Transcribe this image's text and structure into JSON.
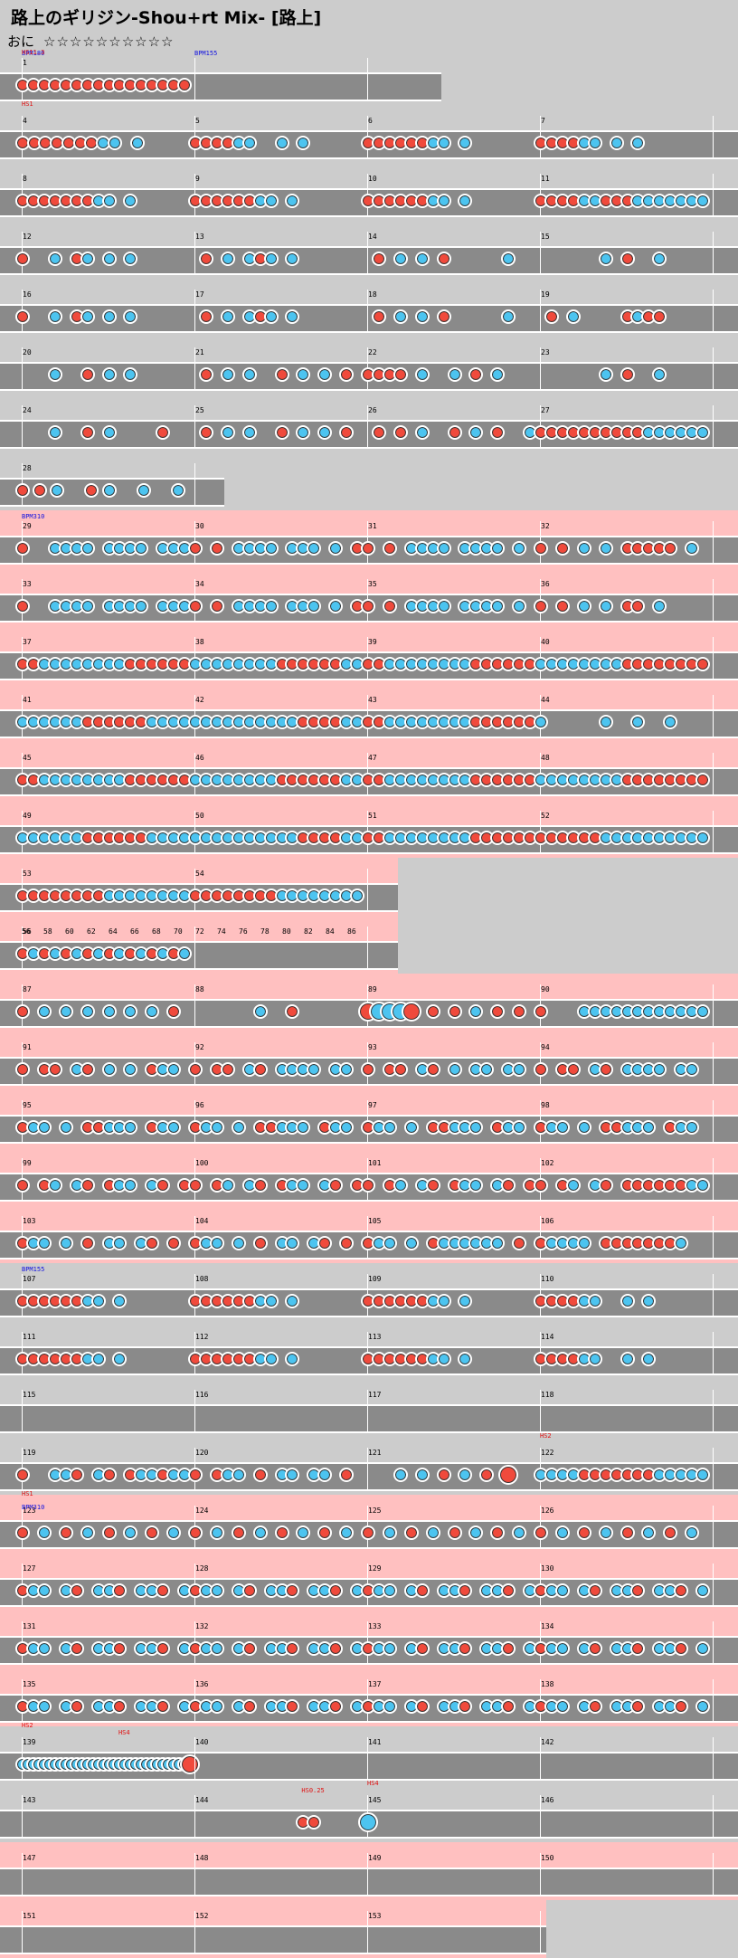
{
  "title": "路上のギリジン-Shou+rt Mix- [路上]",
  "difficulty": {
    "course": "おに",
    "stars": "☆☆☆☆☆☆☆☆☆☆"
  },
  "colors": {
    "don": "#f04a3c",
    "ka": "#4cc4f0",
    "lane": "#8a8a8a",
    "hs_band": "#ffc0c0",
    "background": "#cccccc"
  },
  "rows": [
    {
      "pink": false,
      "measures": [
        {
          "n": "1",
          "len": 4,
          "notes": "dddddddddddddddd"
        },
        {
          "n": "",
          "len": 4,
          "notes": ""
        }
      ],
      "marks": [
        {
          "t": "BPM180",
          "k": "bpm",
          "m": 0
        },
        {
          "t": "HS11.3",
          "k": "hs",
          "m": 0
        },
        {
          "t": "BPM155",
          "k": "bpm",
          "m": 1
        }
      ]
    },
    {
      "pink": false,
      "measures": [
        {
          "n": "4",
          "notes": "dddddddkk.k...."
        },
        {
          "n": "5",
          "notes": "ddddkk..k.k....."
        },
        {
          "n": "6",
          "notes": "ddddddkk.k......"
        },
        {
          "n": "7",
          "notes": "ddddkk.k.k......"
        }
      ],
      "marks": [
        {
          "t": "HS1",
          "k": "hs",
          "m": 0
        }
      ]
    },
    {
      "pink": false,
      "measures": [
        {
          "n": "8",
          "notes": "dddddddkk.k....."
        },
        {
          "n": "9",
          "notes": "ddddddkk.k......"
        },
        {
          "n": "10",
          "notes": "ddddddkk.k......"
        },
        {
          "n": "11",
          "notes": "ddddkkdddkkkkkkk"
        }
      ]
    },
    {
      "pink": false,
      "measures": [
        {
          "n": "12",
          "notes": "d..k.dk.k.k....."
        },
        {
          "n": "13",
          "notes": ".d.k.kdk.k......"
        },
        {
          "n": "14",
          "notes": ".d.k.k.d.....k.."
        },
        {
          "n": "15",
          "notes": "......k.d..k...."
        }
      ]
    },
    {
      "pink": false,
      "measures": [
        {
          "n": "16",
          "notes": "d..k.dk.k.k....."
        },
        {
          "n": "17",
          "notes": ".d.k.kdk.k......"
        },
        {
          "n": "18",
          "notes": ".d.k.k.d.....k.."
        },
        {
          "n": "19",
          "notes": ".d.k....dkdd...."
        }
      ]
    },
    {
      "pink": false,
      "measures": [
        {
          "n": "20",
          "notes": "...k..d.k.k....."
        },
        {
          "n": "21",
          "notes": ".d.k.k..d.k.k.d."
        },
        {
          "n": "22",
          "notes": "dddd.k..k.d.k..."
        },
        {
          "n": "23",
          "notes": "......k.d..k...."
        }
      ]
    },
    {
      "pink": false,
      "measures": [
        {
          "n": "24",
          "notes": "...k..d.k....d.."
        },
        {
          "n": "25",
          "notes": ".d.k.k..d.k.k.d."
        },
        {
          "n": "26",
          "notes": ".d.d.k..d.k.d..k"
        },
        {
          "n": "27",
          "notes": "ddddddddddkkkkkk"
        }
      ]
    },
    {
      "pink": false,
      "measures": [
        {
          "n": "28",
          "notes": "ddk.dk.k.k"
        }
      ]
    },
    {
      "pink": true,
      "measures": [
        {
          "n": "29",
          "notes": "d..kkkk.kkkk.kkk"
        },
        {
          "n": "30",
          "notes": "d.d.kkkk.kkk.k.d"
        },
        {
          "n": "31",
          "notes": "d.d.kkkk.kkkk.k."
        },
        {
          "n": "32",
          "notes": "d.d.k.k.ddddd.k."
        }
      ],
      "marks": [
        {
          "t": "BPM310",
          "k": "bpm",
          "m": 0
        }
      ]
    },
    {
      "pink": true,
      "measures": [
        {
          "n": "33",
          "notes": "d..kkkk.kkkk.kkk"
        },
        {
          "n": "34",
          "notes": "d.d.kkkk.kkk.k.d"
        },
        {
          "n": "35",
          "notes": "d.d.kkkk.kkkk.k."
        },
        {
          "n": "36",
          "notes": "d.d.k.k.dd.k...."
        }
      ]
    },
    {
      "pink": true,
      "measures": [
        {
          "n": "37",
          "notes": "ddkkkkkkkkdddddd"
        },
        {
          "n": "38",
          "notes": "kkkkkkkkddddddkk"
        },
        {
          "n": "39",
          "notes": "ddkkkkkkkkdddddd"
        },
        {
          "n": "40",
          "notes": "kkkkkkkkdddddddd"
        }
      ]
    },
    {
      "pink": true,
      "measures": [
        {
          "n": "41",
          "notes": "kkkkkkddddddkkkk"
        },
        {
          "n": "42",
          "notes": "kkkkkkkkkkddddkk"
        },
        {
          "n": "43",
          "notes": "ddkkkkkkkkdddddd"
        },
        {
          "n": "44",
          "notes": "k.....k..k..k..."
        }
      ]
    },
    {
      "pink": true,
      "measures": [
        {
          "n": "45",
          "notes": "ddkkkkkkkkdddddd"
        },
        {
          "n": "46",
          "notes": "kkkkkkkkddddddkk"
        },
        {
          "n": "47",
          "notes": "ddkkkkkkkkdddddd"
        },
        {
          "n": "48",
          "notes": "kkkkkkkkdddddddd"
        }
      ]
    },
    {
      "pink": true,
      "measures": [
        {
          "n": "49",
          "notes": "kkkkkkddddddkkkk"
        },
        {
          "n": "50",
          "notes": "kkkkkkkkkkddddkk"
        },
        {
          "n": "51",
          "notes": "ddkkkkkkkkdddddd"
        },
        {
          "n": "52",
          "notes": "ddddddkkkkkkkkkk"
        }
      ]
    },
    {
      "pink": true,
      "measures": [
        {
          "n": "53",
          "notes": "ddddddddkkkkkkkk"
        },
        {
          "n": "54",
          "notes": "ddddddddkkkkkkkk"
        }
      ]
    },
    {
      "pink": true,
      "measures": [
        {
          "n": "56",
          "notes": "dkdkdkdkdkdkdkdk"
        },
        {
          "n": "",
          "notes": ""
        }
      ],
      "beatlabels": [
        "56",
        "58",
        "60",
        "62",
        "64",
        "66",
        "68",
        "70",
        "72",
        "74",
        "76",
        "78",
        "80",
        "82",
        "84",
        "86"
      ]
    },
    {
      "pink": true,
      "measures": [
        {
          "n": "87",
          "notes": "d.k.k.k.k.k.k.d."
        },
        {
          "n": "88",
          "notes": "......k..d......"
        },
        {
          "n": "89",
          "notes": "DKKKD.d.d.k.d.d."
        },
        {
          "n": "90",
          "notes": "d...kkkkkkkkkkkk"
        }
      ]
    },
    {
      "pink": true,
      "measures": [
        {
          "n": "91",
          "notes": "d.dd.kd.k.k.dkk."
        },
        {
          "n": "92",
          "notes": "d.dd.kd.kkkk.kk."
        },
        {
          "n": "93",
          "notes": "d.dd.kd.k.kk.kk."
        },
        {
          "n": "94",
          "notes": "d.dd.kd.kkkk.kk."
        }
      ]
    },
    {
      "pink": true,
      "measures": [
        {
          "n": "95",
          "notes": "dkk.k.ddkkk.dkk."
        },
        {
          "n": "96",
          "notes": "dkk.k.ddkkk.dkk."
        },
        {
          "n": "97",
          "notes": "dkk.k.ddkkk.dkk."
        },
        {
          "n": "98",
          "notes": "dkk.k.ddkkk.dkk."
        }
      ]
    },
    {
      "pink": true,
      "measures": [
        {
          "n": "99",
          "notes": "d.dk.kd.dkk.kd.d"
        },
        {
          "n": "100",
          "notes": "d.dk.kd.dkk.kd.d"
        },
        {
          "n": "101",
          "notes": "d.dk.kd.dkk.kd.d"
        },
        {
          "n": "102",
          "notes": "d.dk.kd.ddddddkk"
        }
      ]
    },
    {
      "pink": true,
      "measures": [
        {
          "n": "103",
          "notes": "dkk.k.d.kk.kd.d."
        },
        {
          "n": "104",
          "notes": "dkk.k.d.kk.kd.d."
        },
        {
          "n": "105",
          "notes": "dkk.k.dkkkkkk.d."
        },
        {
          "n": "106",
          "notes": "dkkkk.dddddddk.."
        }
      ]
    },
    {
      "pink": false,
      "measures": [
        {
          "n": "107",
          "notes": "ddddddkk.k......"
        },
        {
          "n": "108",
          "notes": "ddddddkk.k......"
        },
        {
          "n": "109",
          "notes": "ddddddkk.k......"
        },
        {
          "n": "110",
          "notes": "ddddkk..k.k....."
        }
      ],
      "marks": [
        {
          "t": "BPM155",
          "k": "bpm",
          "m": 0
        }
      ]
    },
    {
      "pink": false,
      "measures": [
        {
          "n": "111",
          "notes": "ddddddkk.k......"
        },
        {
          "n": "112",
          "notes": "ddddddkk.k......"
        },
        {
          "n": "113",
          "notes": "ddddddkk.k......"
        },
        {
          "n": "114",
          "notes": "ddddkk..k.k....."
        }
      ]
    },
    {
      "pink": false,
      "measures": [
        {
          "n": "115",
          "notes": ""
        },
        {
          "n": "116",
          "notes": ""
        },
        {
          "n": "117",
          "notes": ""
        },
        {
          "n": "118",
          "notes": ""
        }
      ]
    },
    {
      "pink": false,
      "measures": [
        {
          "n": "119",
          "notes": "d..kkd.kd.dkkdkk"
        },
        {
          "n": "120",
          "notes": "d.dkk.d.kk.kk.d."
        },
        {
          "n": "121",
          "notes": "...k.k.d.k.d.D.."
        },
        {
          "n": "122",
          "notes": "kkkkdddddddkkkkk"
        }
      ],
      "marks": [
        {
          "t": "HS2",
          "k": "hs",
          "m": 3
        }
      ]
    },
    {
      "pink": true,
      "measures": [
        {
          "n": "123",
          "notes": "d.k.d.k.d.k.d.k."
        },
        {
          "n": "124",
          "notes": "d.k.d.k.d.k.d.k."
        },
        {
          "n": "125",
          "notes": "d.k.d.k.d.k.d.k."
        },
        {
          "n": "126",
          "notes": "d.k.d.k.d.k.d.k."
        }
      ],
      "marks": [
        {
          "t": "HS1",
          "k": "hs",
          "m": 0
        },
        {
          "t": "BPM310",
          "k": "bpm",
          "m": 0
        }
      ]
    },
    {
      "pink": true,
      "measures": [
        {
          "n": "127",
          "notes": "dkk.kd.kkd.kkd.k"
        },
        {
          "n": "128",
          "notes": "dkk.kd.kkd.kkd.k"
        },
        {
          "n": "129",
          "notes": "dkk.kd.kkd.kkd.k"
        },
        {
          "n": "130",
          "notes": "dkk.kd.kkd.kkd.k"
        }
      ]
    },
    {
      "pink": true,
      "measures": [
        {
          "n": "131",
          "notes": "dkk.kd.kkd.kkd.k"
        },
        {
          "n": "132",
          "notes": "dkk.kd.kkd.kkd.k"
        },
        {
          "n": "133",
          "notes": "dkk.kd.kkd.kkd.k"
        },
        {
          "n": "134",
          "notes": "dkk.kd.kkd.kkd.k"
        }
      ]
    },
    {
      "pink": true,
      "measures": [
        {
          "n": "135",
          "notes": "dkk.kd.kkd.kkd.k"
        },
        {
          "n": "136",
          "notes": "dkk.kd.kkd.kkd.k"
        },
        {
          "n": "137",
          "notes": "dkk.kd.kkd.kkd.k"
        },
        {
          "n": "138",
          "notes": "dkk.kd.kkd.kkd.k"
        }
      ]
    },
    {
      "pink": false,
      "measures": [
        {
          "n": "139",
          "notes": "kkkkkkkkkkkkkkkkkkkkkkkkkkkkkkkD"
        },
        {
          "n": "140",
          "notes": ""
        },
        {
          "n": "141",
          "notes": ""
        },
        {
          "n": "142",
          "notes": ""
        }
      ],
      "marks": [
        {
          "t": "HS2",
          "k": "hs",
          "m": 0
        },
        {
          "t": "HS4",
          "k": "hs",
          "m": 0,
          "off": 0.56
        }
      ]
    },
    {
      "pink": false,
      "measures": [
        {
          "n": "143",
          "notes": ""
        },
        {
          "n": "144",
          "notes": "..........dd...."
        },
        {
          "n": "145",
          "notes": "K..............."
        },
        {
          "n": "146",
          "notes": ""
        }
      ],
      "marks": [
        {
          "t": "HS0.25",
          "k": "hs",
          "m": 1,
          "off": 0.62
        },
        {
          "t": "HS4",
          "k": "hs",
          "m": 2
        }
      ]
    },
    {
      "pink": true,
      "measures": [
        {
          "n": "147",
          "notes": ""
        },
        {
          "n": "148",
          "notes": ""
        },
        {
          "n": "149",
          "notes": ""
        },
        {
          "n": "150",
          "notes": ""
        }
      ]
    },
    {
      "pink": true,
      "measures": [
        {
          "n": "151",
          "notes": ""
        },
        {
          "n": "152",
          "notes": ""
        },
        {
          "n": "153",
          "notes": ""
        }
      ]
    }
  ]
}
